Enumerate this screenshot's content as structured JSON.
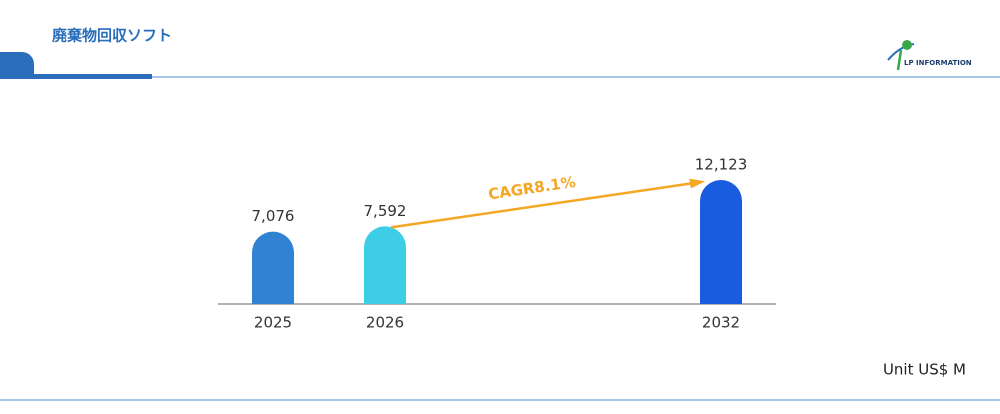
{
  "header": {
    "title": "廃棄物回収ソフト",
    "logo_text": "LP INFORMATION"
  },
  "chart_data": {
    "type": "bar",
    "categories": [
      "2025",
      "2026",
      "2032"
    ],
    "values": [
      7076,
      7592,
      12123
    ],
    "value_labels": [
      "7,076",
      "7,592",
      "12,123"
    ],
    "colors": [
      "#3282d4",
      "#3ecde6",
      "#1a5ce0"
    ],
    "annotation": "CAGR8.1%",
    "unit": "Unit US$ M"
  }
}
